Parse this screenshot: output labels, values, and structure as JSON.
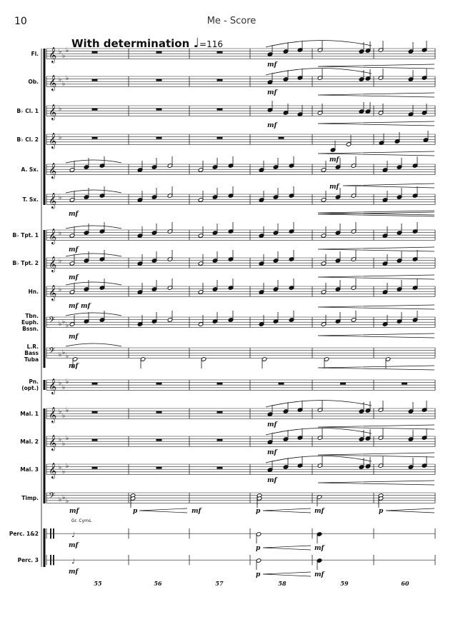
{
  "header": {
    "page_number": "10",
    "title": "Me - Score"
  },
  "tempo": {
    "text": "With determination",
    "note_symbol": "♩",
    "bpm": "=116"
  },
  "instruments": [
    {
      "label": "Fl."
    },
    {
      "label": "Ob."
    },
    {
      "label": "B♭ Cl. 1"
    },
    {
      "label": "B♭ Cl. 2"
    },
    {
      "label": "A. Sx."
    },
    {
      "label": "T. Sx."
    },
    {
      "label": "B♭ Tpt. 1"
    },
    {
      "label": "B♭ Tpt. 2"
    },
    {
      "label": "Hn."
    },
    {
      "label": "Tbn.\nEuph.\nBssn."
    },
    {
      "label": "L.R.\nBass\nTuba"
    },
    {
      "label": "Pn.\n(opt.)"
    },
    {
      "label": "Mal. 1"
    },
    {
      "label": "Mal. 2"
    },
    {
      "label": "Mal. 3"
    },
    {
      "label": "Timp."
    },
    {
      "label": "Perc. 1&2"
    },
    {
      "label": "Perc. 3"
    }
  ],
  "percussion_note": "Gr. Cyms.",
  "dynamics": {
    "mf": "mf",
    "p": "p"
  },
  "measure_numbers": [
    "55",
    "56",
    "57",
    "58",
    "59",
    "60"
  ]
}
